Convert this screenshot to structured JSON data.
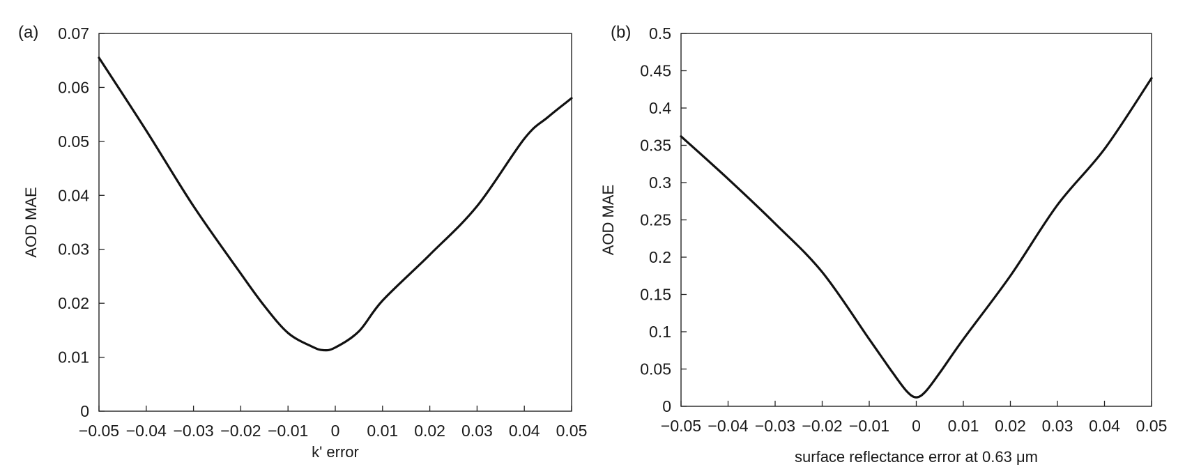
{
  "chart_data": [
    {
      "type": "line",
      "panel_label": "(a)",
      "xlabel": "k' error",
      "ylabel": "AOD MAE",
      "xlim": [
        -0.05,
        0.05
      ],
      "ylim": [
        0,
        0.07
      ],
      "x_ticks": [
        "−0.05",
        "−0.04",
        "−0.03",
        "−0.02",
        "−0.01",
        "0",
        "0.01",
        "0.02",
        "0.03",
        "0.04",
        "0.05"
      ],
      "y_ticks": [
        "0",
        "0.01",
        "0.02",
        "0.03",
        "0.04",
        "0.05",
        "0.06",
        "0.07"
      ],
      "grid": false,
      "series": [
        {
          "x": [
            -0.05,
            -0.04,
            -0.03,
            -0.02,
            -0.015,
            -0.01,
            -0.005,
            -0.0025,
            0,
            0.005,
            0.01,
            0.02,
            0.03,
            0.04,
            0.045,
            0.05
          ],
          "y": [
            0.0655,
            0.052,
            0.038,
            0.0255,
            0.0195,
            0.0145,
            0.012,
            0.0113,
            0.0118,
            0.0148,
            0.0205,
            0.029,
            0.038,
            0.0505,
            0.0545,
            0.058
          ]
        }
      ]
    },
    {
      "type": "line",
      "panel_label": "(b)",
      "xlabel": "surface reflectance error at 0.63 μm",
      "ylabel": "AOD MAE",
      "xlim": [
        -0.05,
        0.05
      ],
      "ylim": [
        0,
        0.5
      ],
      "x_ticks": [
        "−0.05",
        "−0.04",
        "−0.03",
        "−0.02",
        "−0.01",
        "0",
        "0.01",
        "0.02",
        "0.03",
        "0.04",
        "0.05"
      ],
      "y_ticks": [
        "0",
        "0.05",
        "0.1",
        "0.15",
        "0.2",
        "0.25",
        "0.3",
        "0.35",
        "0.4",
        "0.45",
        "0.5"
      ],
      "grid": false,
      "series": [
        {
          "x": [
            -0.05,
            -0.04,
            -0.03,
            -0.02,
            -0.01,
            -0.005,
            -0.002,
            0,
            0.002,
            0.005,
            0.01,
            0.02,
            0.03,
            0.04,
            0.05
          ],
          "y": [
            0.362,
            0.305,
            0.245,
            0.18,
            0.09,
            0.045,
            0.02,
            0.012,
            0.02,
            0.045,
            0.09,
            0.175,
            0.27,
            0.345,
            0.44
          ]
        }
      ]
    }
  ]
}
